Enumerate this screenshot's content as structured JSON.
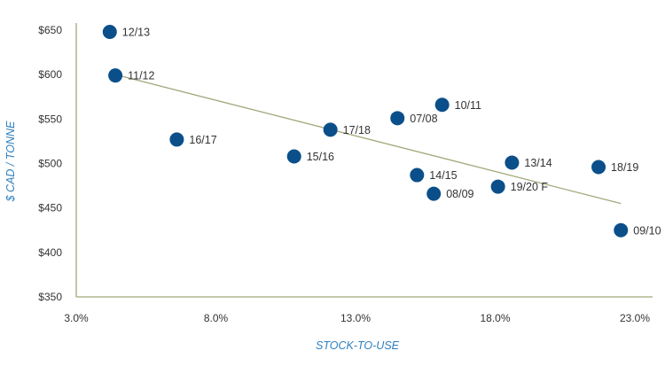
{
  "chart_data": {
    "type": "scatter",
    "xlabel": "STOCK-TO-USE",
    "ylabel": "$ CAD / TONNE",
    "xlim": [
      3.0,
      23.0
    ],
    "ylim": [
      350,
      650
    ],
    "x_ticks": [
      3.0,
      8.0,
      13.0,
      18.0,
      23.0
    ],
    "x_tick_labels": [
      "3.0%",
      "8.0%",
      "13.0%",
      "18.0%",
      "23.0%"
    ],
    "y_ticks": [
      350,
      400,
      450,
      500,
      550,
      600,
      650
    ],
    "y_tick_labels": [
      "$350",
      "$400",
      "$450",
      "$500",
      "$550",
      "$600",
      "$650"
    ],
    "grid": false,
    "points": [
      {
        "label": "12/13",
        "x": 4.2,
        "y": 648
      },
      {
        "label": "11/12",
        "x": 4.4,
        "y": 599
      },
      {
        "label": "16/17",
        "x": 6.6,
        "y": 527
      },
      {
        "label": "15/16",
        "x": 10.8,
        "y": 508
      },
      {
        "label": "17/18",
        "x": 12.1,
        "y": 538
      },
      {
        "label": "07/08",
        "x": 14.5,
        "y": 551
      },
      {
        "label": "10/11",
        "x": 16.1,
        "y": 566
      },
      {
        "label": "14/15",
        "x": 15.2,
        "y": 487
      },
      {
        "label": "08/09",
        "x": 15.8,
        "y": 466
      },
      {
        "label": "19/20 F",
        "x": 18.1,
        "y": 474
      },
      {
        "label": "13/14",
        "x": 18.6,
        "y": 501
      },
      {
        "label": "18/19",
        "x": 21.7,
        "y": 496
      },
      {
        "label": "09/10",
        "x": 22.5,
        "y": 425
      }
    ],
    "trendline": {
      "x": [
        4.4,
        22.5
      ],
      "y": [
        600,
        455
      ]
    },
    "colors": {
      "marker": "#0b4f8a",
      "trendline": "#a3a77a",
      "axis": "#a3a77a",
      "axis_title": "#2f7fbf"
    }
  }
}
